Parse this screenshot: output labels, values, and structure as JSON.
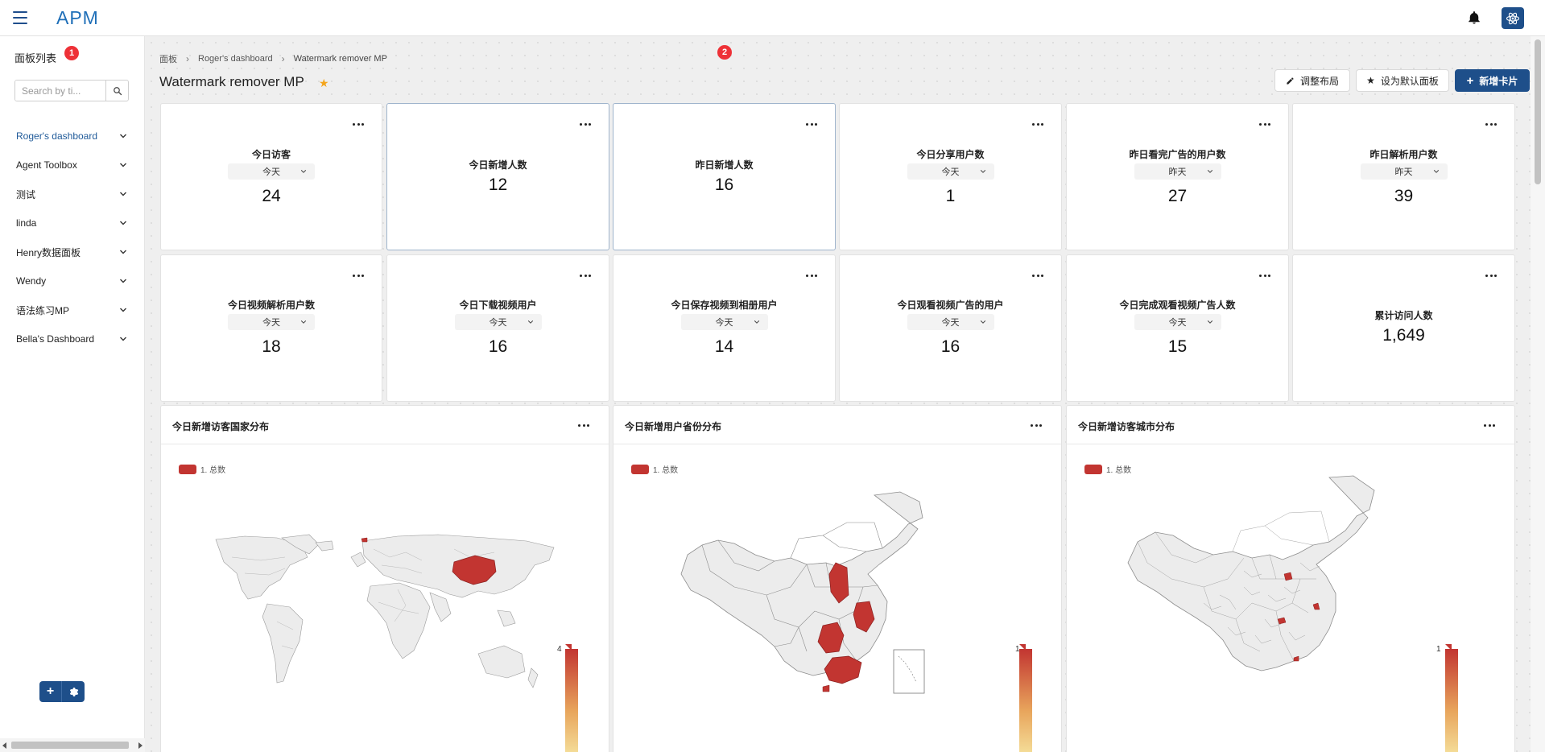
{
  "app": {
    "logo": "APM"
  },
  "sidebar": {
    "title": "面板列表",
    "badge": "1",
    "search_placeholder": "Search by ti...",
    "items": [
      {
        "label": "Roger's dashboard",
        "active": true
      },
      {
        "label": "Agent Toolbox"
      },
      {
        "label": "测试"
      },
      {
        "label": "linda"
      },
      {
        "label": "Henry数据面板"
      },
      {
        "label": "Wendy"
      },
      {
        "label": "语法练习MP"
      },
      {
        "label": "Bella's Dashboard"
      }
    ]
  },
  "breadcrumb": {
    "root": "面板",
    "parent": "Roger's dashboard",
    "current": "Watermark remover MP",
    "badge": "2"
  },
  "page": {
    "title": "Watermark remover MP"
  },
  "toolbar": {
    "adjust_label": "调整布局",
    "default_label": "设为默认面板",
    "add_label": "新增卡片"
  },
  "kpis": [
    {
      "title": "今日访客",
      "filter": "今天",
      "value": "24"
    },
    {
      "title": "今日新增人数",
      "value": "12"
    },
    {
      "title": "昨日新增人数",
      "value": "16"
    },
    {
      "title": "今日分享用户数",
      "filter": "今天",
      "value": "1"
    },
    {
      "title": "昨日看完广告的用户数",
      "filter": "昨天",
      "value": "27"
    },
    {
      "title": "昨日解析用户数",
      "filter": "昨天",
      "value": "39"
    },
    {
      "title": "今日视频解析用户数",
      "filter": "今天",
      "value": "18"
    },
    {
      "title": "今日下载视频用户",
      "filter": "今天",
      "value": "16"
    },
    {
      "title": "今日保存视频到相册用户",
      "filter": "今天",
      "value": "14"
    },
    {
      "title": "今日观看视频广告的用户",
      "filter": "今天",
      "value": "16"
    },
    {
      "title": "今日完成观看视频广告人数",
      "filter": "今天",
      "value": "15"
    },
    {
      "title": "累计访问人数",
      "value": "1,649"
    }
  ],
  "maps": [
    {
      "title": "今日新增访客国家分布",
      "legend": "1. 总数",
      "scale_max": "4"
    },
    {
      "title": "今日新增用户省份分布",
      "legend": "1. 总数",
      "scale_max": "1"
    },
    {
      "title": "今日新增访客城市分布",
      "legend": "1. 总数",
      "scale_max": "1"
    }
  ],
  "colors": {
    "accent": "#1e4f8a",
    "map_fill": "#c23531",
    "star": "#f4a51c"
  }
}
